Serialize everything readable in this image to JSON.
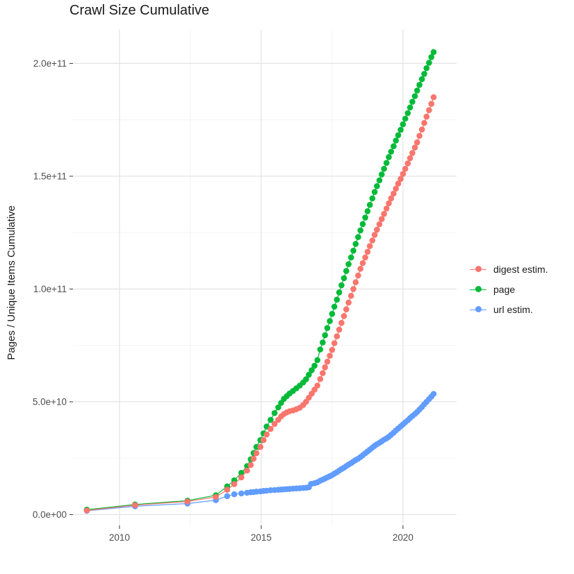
{
  "title": "Crawl Size Cumulative",
  "chart_data": {
    "type": "scatter",
    "title": "Crawl Size Cumulative",
    "xlabel": "",
    "ylabel": "Pages / Unique Items Cumulative",
    "value_unit": "1e9 (values below are in billions; axis shows scientific notation)",
    "grid": true,
    "legend_position": "right",
    "x_range": [
      2008.36,
      2021.89
    ],
    "y_range_e9": [
      -4.8,
      215.2
    ],
    "x_ticks": [
      {
        "label": "2010",
        "value": 2010
      },
      {
        "label": "2015",
        "value": 2015
      },
      {
        "label": "2020",
        "value": 2020
      }
    ],
    "y_ticks": [
      {
        "label": "0.0e+00",
        "value": 0
      },
      {
        "label": "5.0e+10",
        "value": 50
      },
      {
        "label": "1.0e+11",
        "value": 100
      },
      {
        "label": "1.5e+11",
        "value": 150
      },
      {
        "label": "2.0e+11",
        "value": 200
      }
    ],
    "x_minor": [
      2012.5,
      2017.5
    ],
    "y_minor": [
      25,
      75,
      125,
      175
    ],
    "colors": {
      "digest": "#F8766D",
      "page": "#00BA38",
      "url": "#619CFF",
      "grid_major": "#e3e3e3",
      "grid_minor": "#f0f0f0",
      "axis_text": "#4d4d4d"
    },
    "series": [
      {
        "name": "digest estim.",
        "color": "#F8766D",
        "z": 3,
        "points": [
          [
            2008.85,
            1.8
          ],
          [
            2010.55,
            4.2
          ],
          [
            2012.4,
            5.8
          ],
          [
            2013.4,
            7.8
          ],
          [
            2013.8,
            11
          ],
          [
            2014.05,
            13.5
          ],
          [
            2014.3,
            16.5
          ],
          [
            2014.5,
            19.5
          ],
          [
            2014.63,
            22
          ],
          [
            2014.73,
            24.8
          ],
          [
            2014.83,
            27.2
          ],
          [
            2014.97,
            30
          ],
          [
            2015.08,
            33
          ],
          [
            2015.19,
            35.5
          ],
          [
            2015.33,
            38
          ],
          [
            2015.47,
            40.2
          ],
          [
            2015.6,
            42
          ],
          [
            2015.7,
            43.5
          ],
          [
            2015.8,
            44.6
          ],
          [
            2015.9,
            45.3
          ],
          [
            2016,
            45.8
          ],
          [
            2016.12,
            46.2
          ],
          [
            2016.24,
            46.7
          ],
          [
            2016.36,
            47.4
          ],
          [
            2016.48,
            48.6
          ],
          [
            2016.58,
            50
          ],
          [
            2016.68,
            51.8
          ],
          [
            2016.78,
            53.6
          ],
          [
            2016.88,
            55.4
          ],
          [
            2016.98,
            57.2
          ],
          [
            2017.08,
            60.1
          ],
          [
            2017.17,
            62.7
          ],
          [
            2017.25,
            65.3
          ],
          [
            2017.33,
            67.8
          ],
          [
            2017.42,
            70.4
          ],
          [
            2017.5,
            73
          ],
          [
            2017.58,
            76
          ],
          [
            2017.67,
            79
          ],
          [
            2017.75,
            82
          ],
          [
            2017.83,
            85
          ],
          [
            2017.92,
            88
          ],
          [
            2018,
            91
          ],
          [
            2018.08,
            94
          ],
          [
            2018.17,
            97
          ],
          [
            2018.25,
            100
          ],
          [
            2018.33,
            103
          ],
          [
            2018.42,
            106
          ],
          [
            2018.5,
            109
          ],
          [
            2018.58,
            111.5
          ],
          [
            2018.67,
            114
          ],
          [
            2018.75,
            116.5
          ],
          [
            2018.83,
            119
          ],
          [
            2018.92,
            121.5
          ],
          [
            2019,
            124
          ],
          [
            2019.08,
            126.3
          ],
          [
            2019.17,
            128.7
          ],
          [
            2019.25,
            131
          ],
          [
            2019.33,
            133.3
          ],
          [
            2019.42,
            135.7
          ],
          [
            2019.5,
            138
          ],
          [
            2019.58,
            140.2
          ],
          [
            2019.67,
            142.3
          ],
          [
            2019.75,
            144.5
          ],
          [
            2019.83,
            146.7
          ],
          [
            2019.92,
            148.8
          ],
          [
            2020,
            151
          ],
          [
            2020.08,
            153.3
          ],
          [
            2020.17,
            155.7
          ],
          [
            2020.25,
            158
          ],
          [
            2020.33,
            160.3
          ],
          [
            2020.42,
            162.7
          ],
          [
            2020.5,
            165
          ],
          [
            2020.58,
            167.9
          ],
          [
            2020.67,
            170.7
          ],
          [
            2020.75,
            173.6
          ],
          [
            2020.83,
            176.4
          ],
          [
            2020.92,
            179.3
          ],
          [
            2021,
            182.1
          ],
          [
            2021.08,
            185
          ]
        ]
      },
      {
        "name": "page",
        "color": "#00BA38",
        "z": 2,
        "points": [
          [
            2008.85,
            2.2
          ],
          [
            2010.55,
            4.5
          ],
          [
            2012.4,
            6.2
          ],
          [
            2013.4,
            8.6
          ],
          [
            2013.8,
            12.5
          ],
          [
            2014.05,
            15.2
          ],
          [
            2014.3,
            18.5
          ],
          [
            2014.5,
            21.5
          ],
          [
            2014.63,
            24.5
          ],
          [
            2014.73,
            27.3
          ],
          [
            2014.83,
            30
          ],
          [
            2014.97,
            33
          ],
          [
            2015.08,
            36
          ],
          [
            2015.19,
            39
          ],
          [
            2015.33,
            42
          ],
          [
            2015.47,
            45
          ],
          [
            2015.6,
            47.5
          ],
          [
            2015.7,
            49.5
          ],
          [
            2015.8,
            51.3
          ],
          [
            2015.9,
            52.5
          ],
          [
            2016,
            53.7
          ],
          [
            2016.12,
            54.8
          ],
          [
            2016.24,
            56
          ],
          [
            2016.36,
            57.2
          ],
          [
            2016.48,
            58.6
          ],
          [
            2016.58,
            60
          ],
          [
            2016.68,
            62
          ],
          [
            2016.78,
            64
          ],
          [
            2016.88,
            66
          ],
          [
            2016.98,
            68.5
          ],
          [
            2017.08,
            73.2
          ],
          [
            2017.17,
            76.3
          ],
          [
            2017.25,
            79.5
          ],
          [
            2017.33,
            82.7
          ],
          [
            2017.42,
            85.8
          ],
          [
            2017.5,
            89
          ],
          [
            2017.58,
            92.2
          ],
          [
            2017.67,
            95.3
          ],
          [
            2017.75,
            98.5
          ],
          [
            2017.83,
            101.7
          ],
          [
            2017.92,
            104.8
          ],
          [
            2018,
            108
          ],
          [
            2018.08,
            111
          ],
          [
            2018.17,
            114
          ],
          [
            2018.25,
            117
          ],
          [
            2018.33,
            120
          ],
          [
            2018.42,
            123
          ],
          [
            2018.5,
            126
          ],
          [
            2018.58,
            128.8
          ],
          [
            2018.67,
            131.7
          ],
          [
            2018.75,
            134.5
          ],
          [
            2018.83,
            137.3
          ],
          [
            2018.92,
            140.2
          ],
          [
            2019,
            143
          ],
          [
            2019.08,
            145.6
          ],
          [
            2019.17,
            148.2
          ],
          [
            2019.25,
            150.8
          ],
          [
            2019.33,
            153.3
          ],
          [
            2019.42,
            155.9
          ],
          [
            2019.5,
            158.5
          ],
          [
            2019.58,
            160.9
          ],
          [
            2019.67,
            163.3
          ],
          [
            2019.75,
            165.8
          ],
          [
            2019.83,
            168.2
          ],
          [
            2019.92,
            170.6
          ],
          [
            2020,
            173
          ],
          [
            2020.08,
            175.5
          ],
          [
            2020.17,
            178
          ],
          [
            2020.25,
            180.5
          ],
          [
            2020.33,
            183
          ],
          [
            2020.42,
            185.5
          ],
          [
            2020.5,
            188
          ],
          [
            2020.58,
            190.5
          ],
          [
            2020.67,
            193
          ],
          [
            2020.75,
            195.4
          ],
          [
            2020.83,
            197.9
          ],
          [
            2020.92,
            200.3
          ],
          [
            2021,
            202.8
          ],
          [
            2021.08,
            205
          ]
        ]
      },
      {
        "name": "url estim.",
        "color": "#619CFF",
        "z": 1,
        "points": [
          [
            2008.85,
            1.7
          ],
          [
            2010.55,
            3.7
          ],
          [
            2012.4,
            4.9
          ],
          [
            2013.4,
            6.4
          ],
          [
            2013.8,
            8.2
          ],
          [
            2014.05,
            9
          ],
          [
            2014.3,
            9.4
          ],
          [
            2014.5,
            9.7
          ],
          [
            2014.63,
            9.9
          ],
          [
            2014.73,
            10
          ],
          [
            2014.83,
            10.2
          ],
          [
            2014.97,
            10.3
          ],
          [
            2015.08,
            10.5
          ],
          [
            2015.19,
            10.6
          ],
          [
            2015.33,
            10.8
          ],
          [
            2015.47,
            10.9
          ],
          [
            2015.6,
            11
          ],
          [
            2015.7,
            11.1
          ],
          [
            2015.8,
            11.2
          ],
          [
            2015.9,
            11.3
          ],
          [
            2016,
            11.4
          ],
          [
            2016.12,
            11.5
          ],
          [
            2016.24,
            11.6
          ],
          [
            2016.36,
            11.7
          ],
          [
            2016.48,
            11.8
          ],
          [
            2016.58,
            11.9
          ],
          [
            2016.68,
            12.1
          ],
          [
            2016.76,
            13.6
          ],
          [
            2016.88,
            13.9
          ],
          [
            2016.98,
            14.3
          ],
          [
            2017.08,
            15
          ],
          [
            2017.17,
            15.5
          ],
          [
            2017.25,
            16
          ],
          [
            2017.33,
            16.5
          ],
          [
            2017.42,
            17
          ],
          [
            2017.5,
            17.5
          ],
          [
            2017.58,
            18.2
          ],
          [
            2017.67,
            18.8
          ],
          [
            2017.75,
            19.5
          ],
          [
            2017.83,
            20.2
          ],
          [
            2017.92,
            20.8
          ],
          [
            2018,
            21.5
          ],
          [
            2018.08,
            22.2
          ],
          [
            2018.17,
            22.8
          ],
          [
            2018.25,
            23.5
          ],
          [
            2018.33,
            24.2
          ],
          [
            2018.42,
            24.8
          ],
          [
            2018.5,
            25.5
          ],
          [
            2018.58,
            26.3
          ],
          [
            2018.67,
            27.2
          ],
          [
            2018.75,
            28
          ],
          [
            2018.83,
            28.8
          ],
          [
            2018.92,
            29.7
          ],
          [
            2019,
            30.5
          ],
          [
            2019.08,
            31.2
          ],
          [
            2019.17,
            31.8
          ],
          [
            2019.25,
            32.5
          ],
          [
            2019.33,
            33.2
          ],
          [
            2019.42,
            33.8
          ],
          [
            2019.5,
            34.5
          ],
          [
            2019.58,
            35.4
          ],
          [
            2019.67,
            36.3
          ],
          [
            2019.75,
            37.3
          ],
          [
            2019.83,
            38.2
          ],
          [
            2019.92,
            39.1
          ],
          [
            2020,
            40
          ],
          [
            2020.08,
            40.9
          ],
          [
            2020.17,
            41.8
          ],
          [
            2020.25,
            42.8
          ],
          [
            2020.33,
            43.7
          ],
          [
            2020.42,
            44.6
          ],
          [
            2020.5,
            45.5
          ],
          [
            2020.58,
            46.6
          ],
          [
            2020.67,
            47.7
          ],
          [
            2020.75,
            48.9
          ],
          [
            2020.83,
            50
          ],
          [
            2020.92,
            51.2
          ],
          [
            2021,
            52.3
          ],
          [
            2021.08,
            53.5
          ]
        ]
      }
    ]
  }
}
